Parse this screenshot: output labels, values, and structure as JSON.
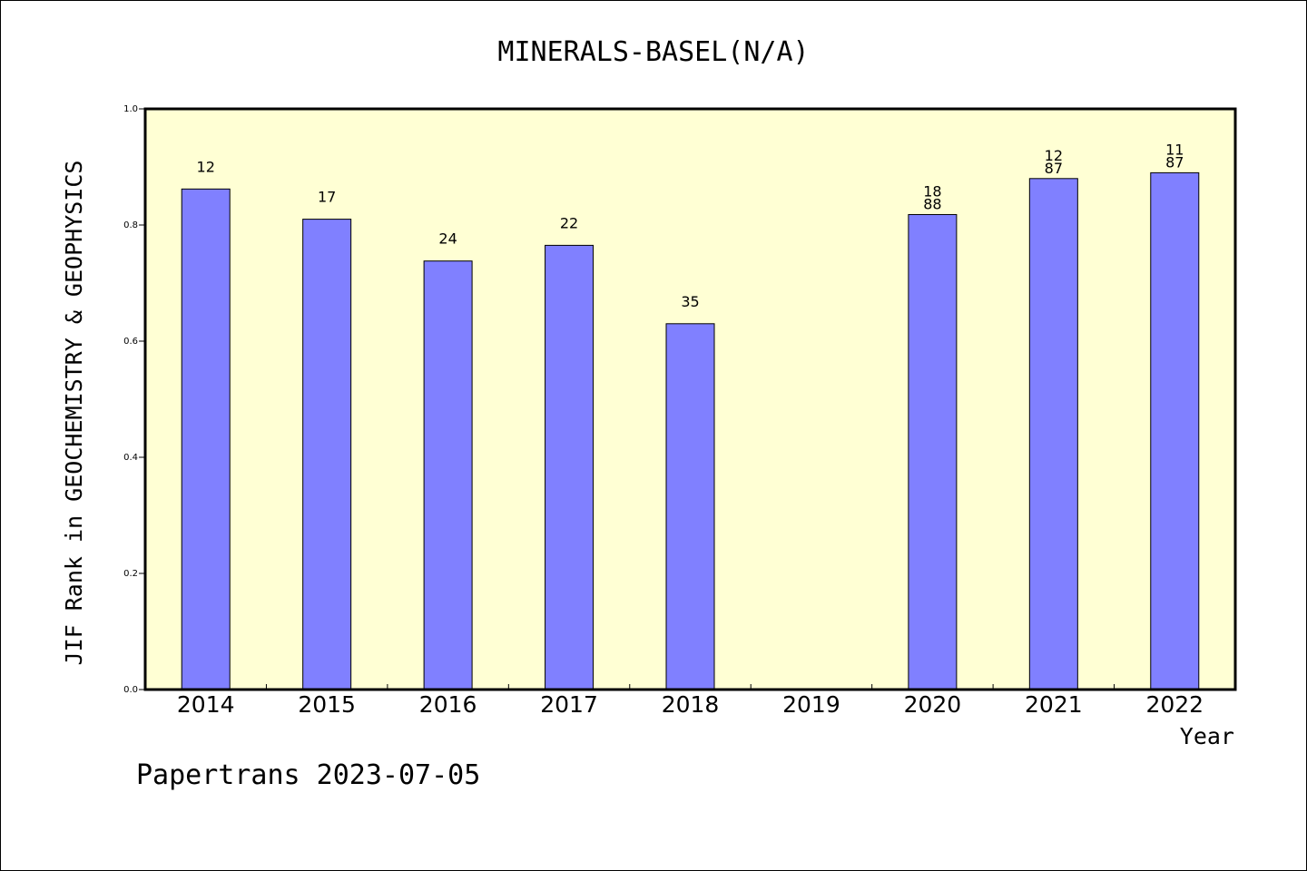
{
  "chart_data": {
    "type": "bar",
    "title": "MINERALS-BASEL(N/A)",
    "xlabel": "Year",
    "ylabel": "JIF Rank in GEOCHEMISTRY & GEOPHYSICS",
    "ylim": [
      0.0,
      1.0
    ],
    "yticks": [
      "0.0",
      "0.2",
      "0.4",
      "0.6",
      "0.8",
      "1.0"
    ],
    "grid": false,
    "categories": [
      "2014",
      "2015",
      "2016",
      "2017",
      "2018",
      "2019",
      "2020",
      "2021",
      "2022"
    ],
    "values": [
      0.862,
      0.81,
      0.738,
      0.765,
      0.63,
      null,
      0.818,
      0.88,
      0.89
    ],
    "bar_labels": [
      [
        "12"
      ],
      [
        "17"
      ],
      [
        "24"
      ],
      [
        "22"
      ],
      [
        "35"
      ],
      [],
      [
        "18",
        "88"
      ],
      [
        "12",
        "87"
      ],
      [
        "11",
        "87"
      ]
    ],
    "colors": {
      "bar": "#8080ff",
      "plot_background": "#ffffd4",
      "outline": "#000000"
    }
  },
  "footer": {
    "credit": "Papertrans 2023-07-05"
  }
}
